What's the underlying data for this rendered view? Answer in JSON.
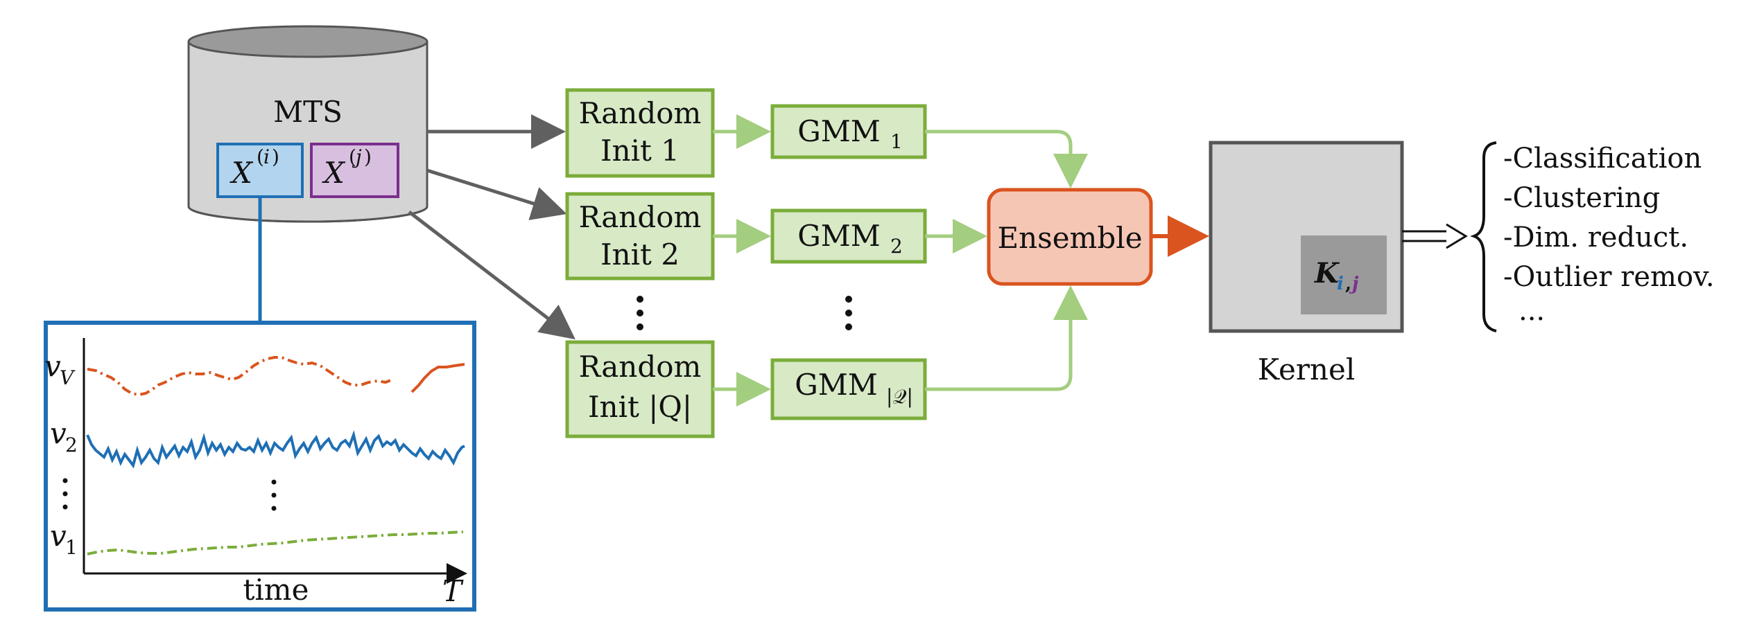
{
  "database": {
    "label": "MTS",
    "sample_i": "X(i)",
    "sample_j": "X(j)"
  },
  "inits": [
    {
      "line1": "Random",
      "line2": "Init 1"
    },
    {
      "line1": "Random",
      "line2": "Init 2"
    },
    {
      "line1": "Random",
      "line2": "Init |Q|"
    }
  ],
  "gmms": [
    "GMM1",
    "GMM2",
    "GMM|Q|"
  ],
  "ensemble": "Ensemble",
  "kernel": {
    "label": "Kernel",
    "entry": "Ki,j"
  },
  "uses": [
    "-Classification",
    "-Clustering",
    "-Dim. reduct.",
    "-Outlier remov.",
    "..."
  ],
  "inset": {
    "xlabel": "time",
    "x_end": "T",
    "variables": [
      "vV",
      "v2",
      "v1"
    ]
  },
  "colors": {
    "blue": "#1f6fb4",
    "purple": "#7b2f8e",
    "orange": "#d9541e",
    "green": "#7aad3a",
    "green_fill": "#d8e9c6",
    "gray_arrow": "#606060"
  }
}
